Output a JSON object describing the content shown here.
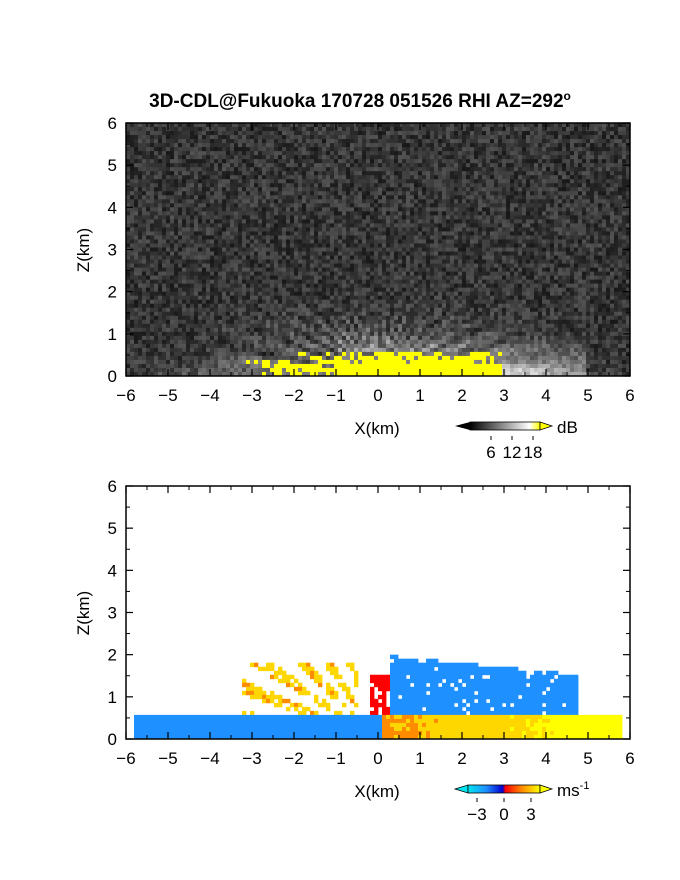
{
  "title": "3D-CDL@Fukuoka 170728 051526 RHI AZ=292",
  "title_superscript": "o",
  "chart_data": [
    {
      "type": "heatmap",
      "field": "signal intensity",
      "xlabel": "X(km)",
      "ylabel": "Z(km)",
      "xlim": [
        -6,
        6
      ],
      "ylim": [
        0,
        6
      ],
      "xticks": [
        "-6",
        "-5",
        "-4",
        "-3",
        "-2",
        "-1",
        "0",
        "1",
        "2",
        "3",
        "4",
        "5",
        "6"
      ],
      "yticks": [
        "0",
        "1",
        "2",
        "3",
        "4",
        "5",
        "6"
      ],
      "colorbar": {
        "unit": "dB",
        "ticks": [
          "6",
          "12",
          "18"
        ],
        "range": [
          0,
          20
        ]
      },
      "colormap": [
        "#000000",
        "#404040",
        "#808080",
        "#c0c0c0",
        "#ffffff",
        "#ffff00"
      ]
    },
    {
      "type": "heatmap",
      "field": "Doppler velocity",
      "xlabel": "X(km)",
      "ylabel": "Z(km)",
      "xlim": [
        -6,
        6
      ],
      "ylim": [
        0,
        6
      ],
      "xticks": [
        "-6",
        "-5",
        "-4",
        "-3",
        "-2",
        "-1",
        "0",
        "1",
        "2",
        "3",
        "4",
        "5",
        "6"
      ],
      "yticks": [
        "0",
        "1",
        "2",
        "3",
        "4",
        "5",
        "6"
      ],
      "colorbar": {
        "unit": "ms",
        "unit_superscript": "-1",
        "ticks": [
          "-3",
          "0",
          "3"
        ],
        "range": [
          -4,
          4
        ]
      },
      "colormap": [
        "#00e5ee",
        "#1e90ff",
        "#0000cd",
        "#ff0000",
        "#ff8c00",
        "#ffd700",
        "#ffff00"
      ]
    }
  ]
}
